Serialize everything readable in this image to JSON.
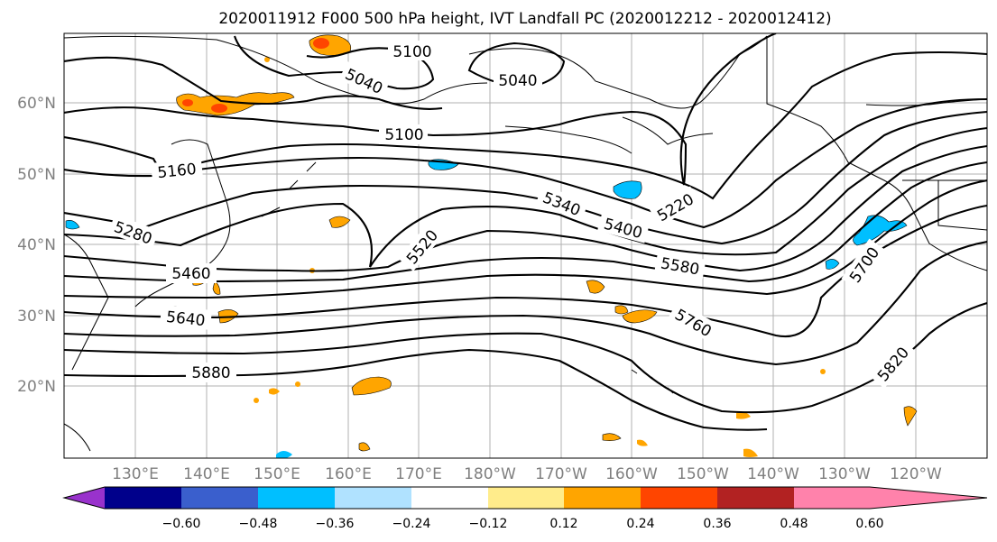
{
  "title": "2020011912 F000 500 hPa height, IVT Landfall PC (2020012212 - 2020012412)",
  "map": {
    "lat_labels": [
      "60°N",
      "50°N",
      "40°N",
      "30°N",
      "20°N"
    ],
    "lon_labels": [
      "130°E",
      "140°E",
      "150°E",
      "160°E",
      "170°E",
      "180°W",
      "170°W",
      "160°W",
      "150°W",
      "140°W",
      "130°W",
      "120°W"
    ],
    "contour_labels": [
      "5100",
      "5040",
      "5040",
      "5100",
      "5160",
      "5220",
      "5280",
      "5340",
      "5400",
      "5460",
      "5520",
      "5580",
      "5640",
      "5700",
      "5760",
      "5820",
      "5880"
    ]
  },
  "colorbar": {
    "tick_labels": [
      "−0.60",
      "−0.48",
      "−0.36",
      "−0.24",
      "−0.12",
      "0.12",
      "0.24",
      "0.36",
      "0.48",
      "0.60"
    ],
    "colors": [
      "#9932cc",
      "#00008b",
      "#3a5fcd",
      "#00bfff",
      "#b0e2ff",
      "#ffffff",
      "#ffec8b",
      "#ffa500",
      "#ff4500",
      "#b22222",
      "#ff82ab"
    ]
  }
}
